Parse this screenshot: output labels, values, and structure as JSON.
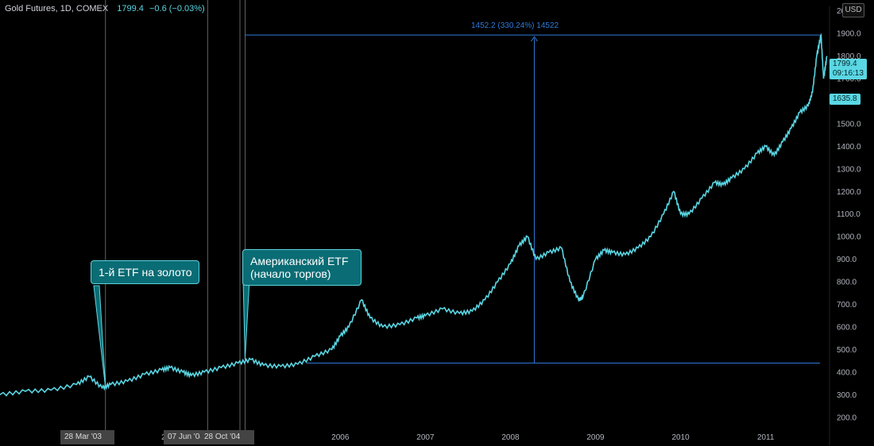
{
  "header": {
    "title": "Gold Futures, 1D, COMEX",
    "price": "1799.4",
    "change": "−0.6 (−0.03%)"
  },
  "currency": "USD",
  "measurement": {
    "label": "1452.2 (330.24%) 14522",
    "from_price": 440,
    "to_price": 1893
  },
  "annotations": [
    {
      "text": "1-й ETF на золото"
    },
    {
      "text": "Американский ETF (начало торгов)"
    }
  ],
  "price_labels": {
    "last": "1799.4",
    "timer": "09:16:13",
    "cursor": "1635.8"
  },
  "date_tags": [
    "28 Mar '03",
    "07 Jun '04",
    "28 Oct '04"
  ],
  "colors": {
    "line": "#5ad7e4",
    "measure": "#2f7bd9",
    "callout_bg": "#0a6c74",
    "background": "#000000"
  },
  "chart_data": {
    "type": "line",
    "title": "Gold Futures, 1D, COMEX",
    "xlabel": "",
    "ylabel": "",
    "ylim": [
      150,
      2020
    ],
    "xlim": [
      2002.0,
      2011.75
    ],
    "yticks": [
      200,
      300,
      400,
      500,
      600,
      700,
      800,
      900,
      1000,
      1100,
      1200,
      1300,
      1400,
      1500,
      1600,
      1700,
      1800,
      1900,
      2000
    ],
    "ytick_labels": [
      "200.0",
      "300.0",
      "400.0",
      "500.0",
      "600.0",
      "700.0",
      "800.0",
      "900.0",
      "1000.0",
      "1100.0",
      "1200.0",
      "1300.0",
      "1400.0",
      "1500.0",
      "1600.0",
      "1700.0",
      "1800.0",
      "1900.0",
      "2000.0"
    ],
    "xticks": [
      2004,
      2006,
      2007,
      2008,
      2009,
      2010,
      2011
    ],
    "xtick_labels": [
      "2004",
      "2006",
      "2007",
      "2008",
      "2009",
      "2010",
      "2011"
    ],
    "grid": false,
    "series": [
      {
        "x": [
          2002.0,
          2002.3,
          2002.6,
          2002.9,
          2003.05,
          2003.2,
          2003.3,
          2003.5,
          2003.7,
          2003.9,
          2004.0,
          2004.15,
          2004.25,
          2004.4,
          2004.6,
          2004.8,
          2004.95,
          2005.1,
          2005.3,
          2005.5,
          2005.7,
          2005.9,
          2006.0,
          2006.1,
          2006.25,
          2006.35,
          2006.5,
          2006.7,
          2006.9,
          2007.0,
          2007.2,
          2007.4,
          2007.55,
          2007.7,
          2007.85,
          2008.0,
          2008.1,
          2008.2,
          2008.3,
          2008.45,
          2008.6,
          2008.7,
          2008.8,
          2008.85,
          2009.0,
          2009.1,
          2009.2,
          2009.35,
          2009.5,
          2009.65,
          2009.8,
          2009.92,
          2010.0,
          2010.1,
          2010.25,
          2010.4,
          2010.5,
          2010.6,
          2010.75,
          2010.9,
          2011.0,
          2011.1,
          2011.2,
          2011.3,
          2011.4,
          2011.5,
          2011.55,
          2011.6,
          2011.65,
          2011.68,
          2011.72
        ],
        "y": [
          300,
          315,
          320,
          345,
          380,
          330,
          345,
          360,
          390,
          410,
          420,
          400,
          385,
          400,
          420,
          440,
          455,
          430,
          425,
          435,
          470,
          500,
          560,
          600,
          720,
          640,
          600,
          610,
          640,
          650,
          680,
          660,
          670,
          720,
          800,
          880,
          960,
          1000,
          900,
          930,
          950,
          800,
          720,
          730,
          900,
          940,
          930,
          920,
          950,
          1000,
          1100,
          1200,
          1100,
          1100,
          1170,
          1240,
          1230,
          1260,
          1300,
          1370,
          1400,
          1360,
          1420,
          1480,
          1550,
          1580,
          1640,
          1800,
          1893,
          1700,
          1800
        ]
      }
    ]
  }
}
